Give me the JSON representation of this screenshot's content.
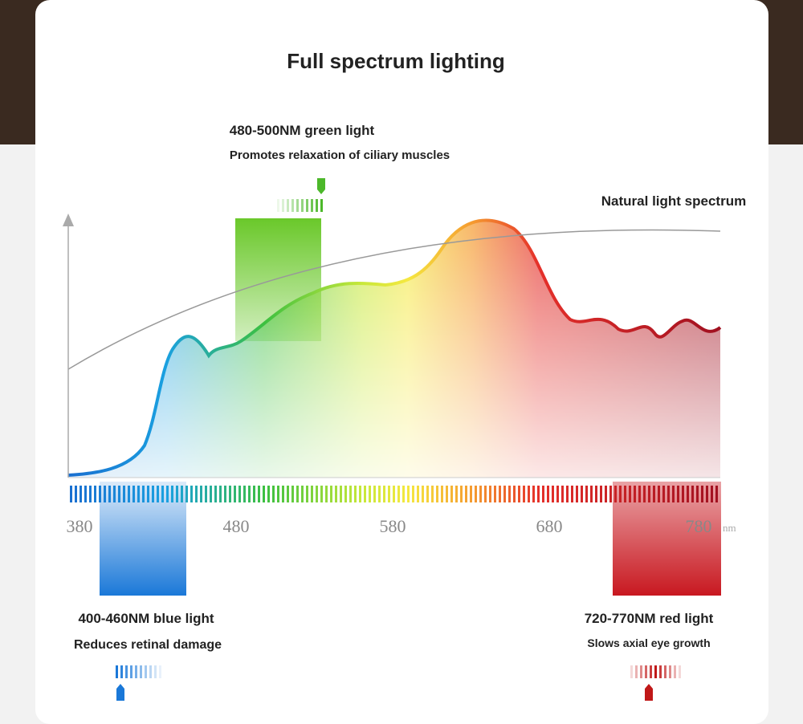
{
  "header": {
    "title": "Full spectrum lighting"
  },
  "green_light": {
    "label": "480-500NM green light",
    "note": "Promotes relaxation of ciliary muscles"
  },
  "natural_light": {
    "label": "Natural light spectrum"
  },
  "blue_light": {
    "label": "400-460NM blue light",
    "note": "Reduces retinal damage"
  },
  "red_light": {
    "label": "720-770NM red light",
    "note": "Slows axial eye growth"
  },
  "axis": {
    "ticks": [
      "380",
      "480",
      "580",
      "680",
      "780"
    ],
    "unit": "nm"
  }
}
